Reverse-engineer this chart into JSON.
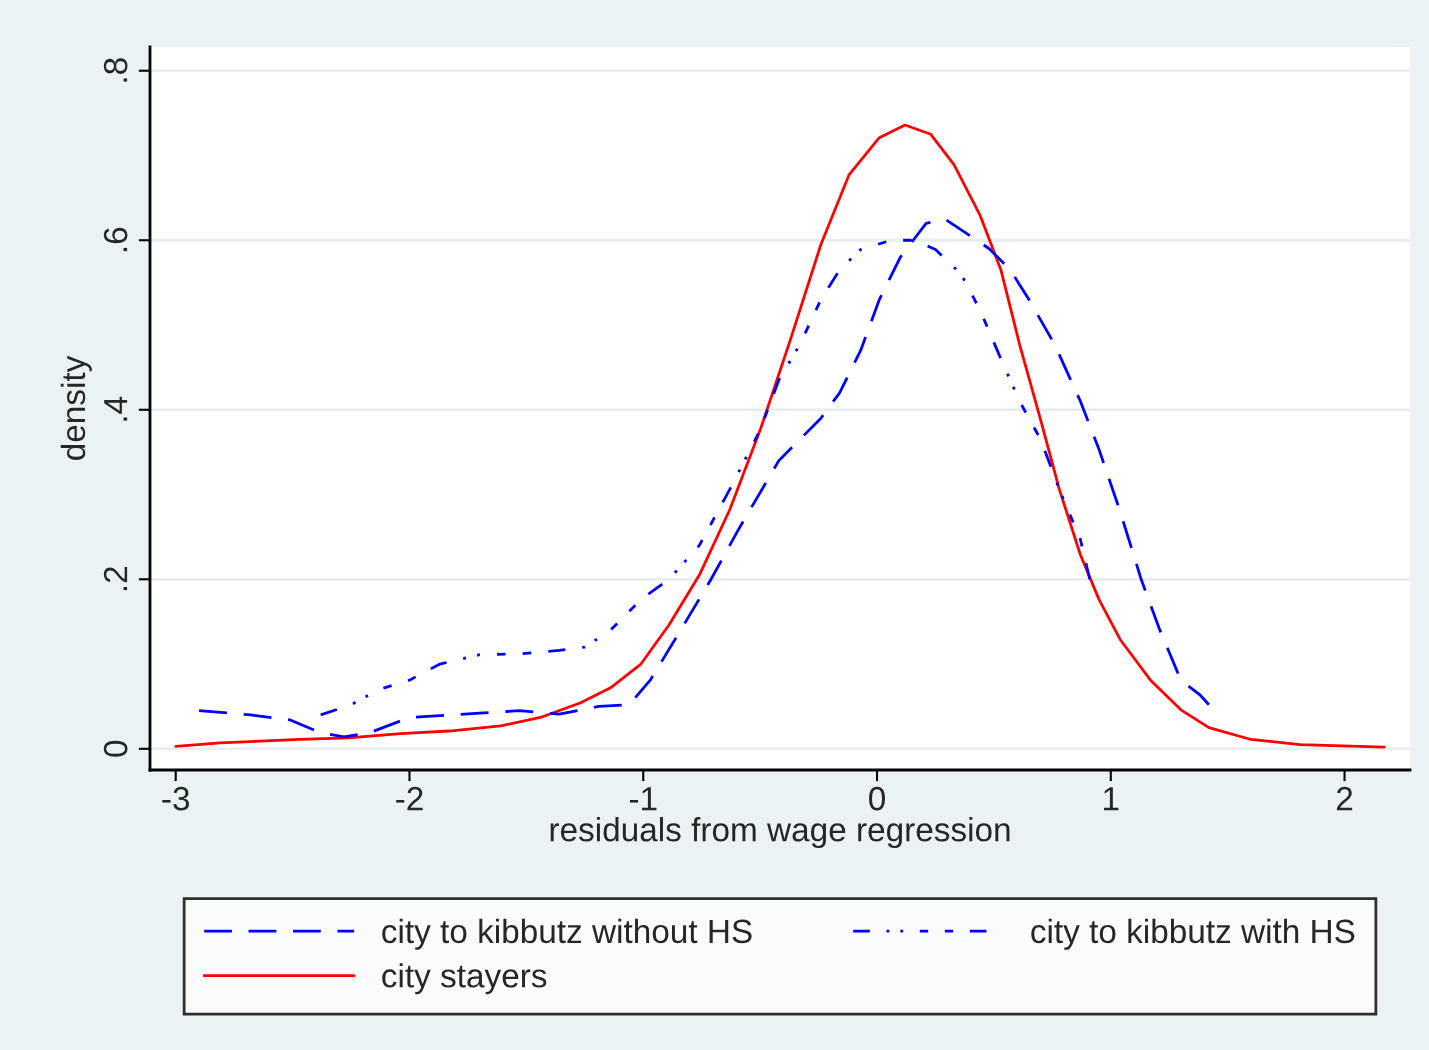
{
  "chart_data": {
    "type": "line",
    "xlabel": "residuals from wage regression",
    "ylabel": "density",
    "xlim": [
      -3.11,
      2.28
    ],
    "ylim": [
      -0.025,
      0.828
    ],
    "xticks": [
      -3,
      -2,
      -1,
      0,
      1,
      2
    ],
    "yticks": [
      {
        "value": 0,
        "label": "0"
      },
      {
        "value": 0.2,
        "label": ".2"
      },
      {
        "value": 0.4,
        "label": ".4"
      },
      {
        "value": 0.6,
        "label": ".6"
      },
      {
        "value": 0.8,
        "label": ".8"
      }
    ],
    "grid": "y",
    "legend": "bottom",
    "marker": "none",
    "series": [
      {
        "name": "city to kibbutz without HS",
        "color": "#0000ff",
        "line_style": "dashed",
        "x": [
          -2.9,
          -2.68,
          -2.51,
          -2.38,
          -2.28,
          -2.17,
          -2.0,
          -1.7,
          -1.53,
          -1.36,
          -1.19,
          -1.06,
          -0.97,
          -0.84,
          -0.71,
          -0.59,
          -0.42,
          -0.24,
          -0.16,
          -0.07,
          0.01,
          0.1,
          0.21,
          0.29,
          0.4,
          0.48,
          0.57,
          0.65,
          0.76,
          0.87,
          0.95,
          1.04,
          1.13,
          1.21,
          1.3,
          1.38,
          1.42
        ],
        "values": [
          0.045,
          0.04,
          0.034,
          0.019,
          0.014,
          0.019,
          0.037,
          0.042,
          0.045,
          0.041,
          0.05,
          0.052,
          0.081,
          0.14,
          0.2,
          0.26,
          0.34,
          0.39,
          0.42,
          0.47,
          0.53,
          0.58,
          0.62,
          0.625,
          0.605,
          0.59,
          0.565,
          0.53,
          0.477,
          0.41,
          0.353,
          0.28,
          0.2,
          0.14,
          0.081,
          0.064,
          0.052
        ]
      },
      {
        "name": "city to kibbutz with HS",
        "color": "#0000ff",
        "line_style": "dotted",
        "x": [
          -2.38,
          -2.25,
          -2.13,
          -2.0,
          -1.87,
          -1.7,
          -1.53,
          -1.36,
          -1.25,
          -1.14,
          -1.01,
          -0.89,
          -0.76,
          -0.63,
          -0.5,
          -0.42,
          -0.33,
          -0.24,
          -0.16,
          -0.07,
          0.06,
          0.16,
          0.25,
          0.36,
          0.44,
          0.53,
          0.61,
          0.7,
          0.78,
          0.87,
          0.91
        ],
        "values": [
          0.04,
          0.052,
          0.07,
          0.081,
          0.1,
          0.111,
          0.112,
          0.116,
          0.12,
          0.14,
          0.176,
          0.2,
          0.24,
          0.306,
          0.376,
          0.435,
          0.477,
          0.53,
          0.565,
          0.589,
          0.6,
          0.6,
          0.589,
          0.56,
          0.518,
          0.46,
          0.41,
          0.365,
          0.306,
          0.247,
          0.2
        ]
      },
      {
        "name": "city stayers",
        "color": "#ff0000",
        "line_style": "solid",
        "x": [
          -3.0,
          -2.81,
          -2.47,
          -2.26,
          -2.04,
          -1.83,
          -1.61,
          -1.44,
          -1.27,
          -1.14,
          -1.01,
          -0.89,
          -0.76,
          -0.63,
          -0.5,
          -0.37,
          -0.24,
          -0.12,
          0.01,
          0.12,
          0.23,
          0.33,
          0.44,
          0.53,
          0.61,
          0.7,
          0.78,
          0.87,
          0.95,
          1.04,
          1.17,
          1.3,
          1.42,
          1.6,
          1.81,
          2.17
        ],
        "values": [
          0.003,
          0.007,
          0.011,
          0.013,
          0.018,
          0.021,
          0.027,
          0.037,
          0.054,
          0.072,
          0.1,
          0.146,
          0.205,
          0.282,
          0.376,
          0.483,
          0.595,
          0.677,
          0.721,
          0.736,
          0.725,
          0.689,
          0.63,
          0.565,
          0.477,
          0.388,
          0.306,
          0.229,
          0.176,
          0.129,
          0.081,
          0.046,
          0.025,
          0.011,
          0.005,
          0.002
        ]
      }
    ]
  }
}
